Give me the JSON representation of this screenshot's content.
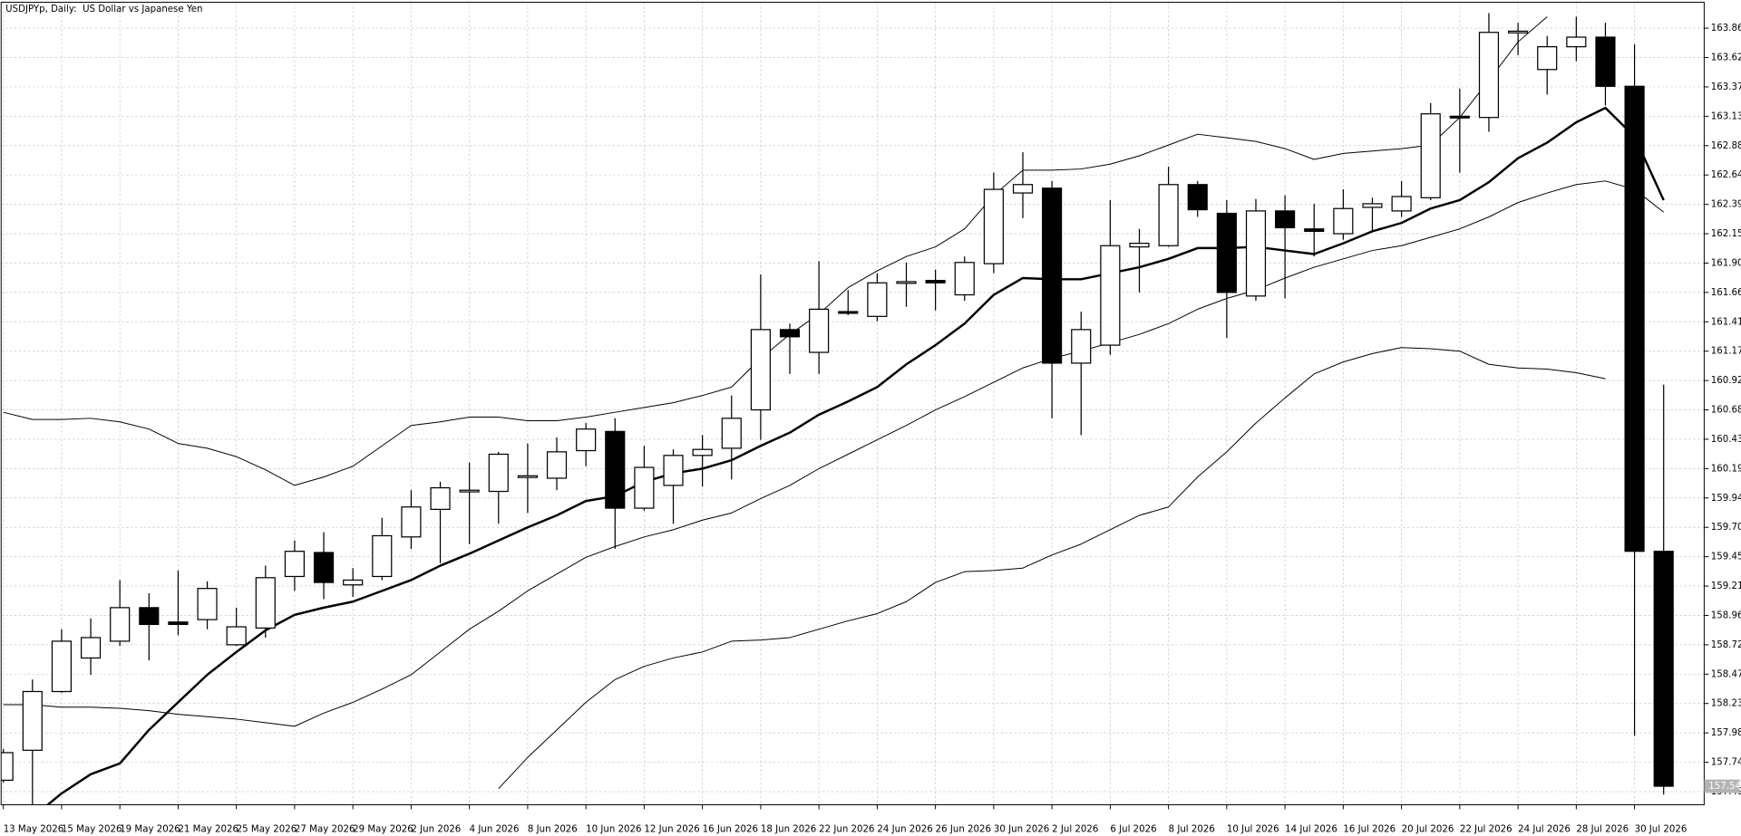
{
  "chart_data": {
    "type": "candlestick",
    "title": "USDJPYp, Daily:  US Dollar vs Japanese Yen",
    "categories": [
      "13 May 2026",
      null,
      "15 May 2026",
      null,
      "19 May 2026",
      null,
      "21 May 2026",
      null,
      "25 May 2026",
      null,
      "27 May 2026",
      null,
      "29 May 2026",
      null,
      "2 Jun 2026",
      null,
      "4 Jun 2026",
      null,
      "8 Jun 2026",
      null,
      "10 Jun 2026",
      null,
      "12 Jun 2026",
      null,
      "16 Jun 2026",
      null,
      "18 Jun 2026",
      null,
      "22 Jun 2026",
      null,
      "24 Jun 2026",
      null,
      "26 Jun 2026",
      null,
      "30 Jun 2026",
      null,
      "2 Jul 2026",
      null,
      "6 Jul 2026",
      null,
      "8 Jul 2026",
      null,
      "10 Jul 2026",
      null,
      "14 Jul 2026",
      null,
      "16 Jul 2026",
      null,
      "20 Jul 2026",
      null,
      "22 Jul 2026",
      null,
      "24 Jul 2026",
      null,
      "28 Jul 2026",
      null,
      "30 Jul 2026",
      null
    ],
    "open": [
      157.59,
      157.84,
      158.33,
      158.61,
      158.75,
      159.03,
      158.91,
      158.93,
      158.72,
      158.86,
      159.29,
      159.49,
      159.22,
      159.29,
      159.62,
      159.85,
      160.0,
      160.0,
      160.12,
      160.11,
      160.34,
      160.5,
      159.86,
      160.05,
      160.3,
      160.36,
      160.68,
      161.35,
      161.16,
      161.5,
      161.46,
      161.74,
      161.76,
      161.64,
      161.9,
      162.49,
      162.53,
      161.07,
      161.22,
      162.04,
      162.05,
      162.56,
      162.32,
      161.63,
      162.34,
      162.19,
      162.15,
      162.37,
      162.34,
      162.45,
      163.13,
      163.12,
      163.83,
      163.52,
      163.71,
      163.79,
      163.38,
      159.5
    ],
    "high": [
      157.85,
      158.43,
      158.85,
      158.94,
      159.26,
      159.15,
      159.34,
      159.25,
      159.03,
      159.38,
      159.59,
      159.66,
      159.36,
      159.78,
      160.01,
      160.08,
      160.24,
      160.33,
      160.4,
      160.45,
      160.57,
      160.61,
      160.38,
      160.35,
      160.47,
      160.8,
      161.81,
      161.4,
      161.92,
      161.68,
      161.82,
      161.91,
      161.85,
      161.96,
      162.66,
      162.83,
      162.59,
      161.5,
      162.43,
      162.19,
      162.71,
      162.59,
      162.43,
      162.44,
      162.47,
      162.4,
      162.52,
      162.45,
      162.59,
      163.24,
      163.36,
      163.99,
      163.91,
      163.8,
      163.96,
      163.91,
      163.73,
      160.89
    ],
    "low": [
      157.57,
      157.26,
      158.32,
      158.47,
      158.71,
      158.59,
      158.8,
      158.85,
      158.71,
      158.78,
      159.17,
      159.1,
      159.12,
      159.26,
      159.52,
      159.4,
      159.56,
      159.73,
      159.82,
      160.01,
      160.21,
      159.52,
      159.84,
      159.73,
      160.04,
      160.1,
      160.43,
      160.98,
      160.98,
      161.47,
      161.42,
      161.54,
      161.51,
      161.59,
      161.82,
      162.28,
      160.61,
      160.47,
      161.14,
      161.66,
      162.04,
      162.29,
      161.28,
      161.59,
      161.61,
      161.96,
      162.1,
      162.17,
      162.29,
      162.43,
      162.66,
      163.0,
      163.64,
      163.31,
      163.59,
      163.22,
      157.96,
      157.47
    ],
    "close": [
      157.82,
      158.33,
      158.75,
      158.78,
      159.03,
      158.89,
      158.89,
      159.19,
      158.87,
      159.28,
      159.5,
      159.24,
      159.26,
      159.63,
      159.87,
      160.03,
      160.01,
      160.31,
      160.13,
      160.33,
      160.52,
      159.86,
      160.2,
      160.3,
      160.35,
      160.61,
      161.35,
      161.29,
      161.52,
      161.49,
      161.74,
      161.75,
      161.74,
      161.91,
      162.52,
      162.56,
      161.07,
      161.35,
      162.05,
      162.07,
      162.56,
      162.35,
      161.66,
      162.34,
      162.2,
      162.17,
      162.36,
      162.4,
      162.46,
      163.15,
      163.12,
      163.83,
      163.84,
      163.71,
      163.79,
      163.38,
      159.5,
      157.54
    ],
    "lines": [
      {
        "color": "#000000",
        "width": 2,
        "values": [
          null,
          157.28,
          157.48,
          157.64,
          157.73,
          158.01,
          158.24,
          158.47,
          158.66,
          158.84,
          158.97,
          159.03,
          159.08,
          159.17,
          159.26,
          159.38,
          159.48,
          159.59,
          159.7,
          159.8,
          159.92,
          159.96,
          160.08,
          160.15,
          160.19,
          160.26,
          160.38,
          160.49,
          160.64,
          160.75,
          160.87,
          161.06,
          161.22,
          161.4,
          161.64,
          161.78,
          161.77,
          161.77,
          161.82,
          161.87,
          161.94,
          162.03,
          162.03,
          162.04,
          162.01,
          161.98,
          162.07,
          162.17,
          162.24,
          162.36,
          162.43,
          162.58,
          162.78,
          162.91,
          163.08,
          163.2,
          162.96,
          162.43
        ]
      },
      {
        "color": "#000000",
        "width": 0.8,
        "values": [
          160.66,
          160.6,
          160.6,
          160.61,
          160.58,
          160.52,
          160.4,
          160.36,
          160.29,
          160.18,
          160.05,
          160.12,
          160.21,
          160.38,
          160.55,
          160.58,
          160.62,
          160.62,
          160.59,
          160.59,
          160.62,
          160.66,
          160.7,
          160.74,
          160.8,
          160.87,
          161.11,
          161.31,
          161.48,
          161.7,
          161.84,
          161.96,
          162.04,
          162.19,
          162.47,
          162.68,
          162.68,
          162.69,
          162.73,
          162.8,
          162.89,
          162.98,
          162.95,
          162.92,
          162.86,
          162.77,
          162.82,
          162.84,
          162.86,
          162.89,
          163.12,
          163.43,
          163.75,
          163.96,
          null,
          null,
          null,
          null
        ]
      },
      {
        "color": "#000000",
        "width": 0.8,
        "values": [
          158.22,
          158.22,
          158.2,
          158.2,
          158.19,
          158.17,
          158.14,
          158.12,
          158.1,
          158.07,
          158.04,
          158.15,
          158.24,
          158.35,
          158.47,
          158.66,
          158.85,
          159.0,
          159.17,
          159.31,
          159.45,
          159.54,
          159.62,
          159.68,
          159.76,
          159.82,
          159.94,
          160.05,
          160.19,
          160.31,
          160.43,
          160.55,
          160.68,
          160.79,
          160.91,
          161.03,
          161.11,
          161.17,
          161.24,
          161.31,
          161.4,
          161.52,
          161.61,
          161.68,
          161.78,
          161.87,
          161.94,
          162.01,
          162.05,
          162.12,
          162.19,
          162.29,
          162.41,
          162.49,
          162.56,
          162.59,
          162.52,
          162.33
        ]
      },
      {
        "color": "#000000",
        "width": 0.8,
        "values": [
          null,
          null,
          null,
          null,
          null,
          null,
          null,
          null,
          null,
          null,
          null,
          null,
          null,
          null,
          null,
          null,
          null,
          157.52,
          157.78,
          158.01,
          158.24,
          158.43,
          158.54,
          158.61,
          158.66,
          158.75,
          158.76,
          158.78,
          158.85,
          158.92,
          158.98,
          159.08,
          159.24,
          159.33,
          159.34,
          159.36,
          159.47,
          159.56,
          159.68,
          159.8,
          159.87,
          160.12,
          160.33,
          160.57,
          160.78,
          160.98,
          161.08,
          161.15,
          161.2,
          161.19,
          161.17,
          161.06,
          161.03,
          161.02,
          160.99,
          160.94,
          null,
          null
        ]
      }
    ],
    "bull_color": "#ffffff",
    "bear_color": "#000000",
    "grid": true,
    "ylim": [
      157.385,
      164.1
    ],
    "yticks": [
      157.495,
      {
        "value": 157.74,
        "label": "157.740"
      },
      157.985,
      {
        "value": 158.23,
        "label": "158.230"
      },
      158.475,
      {
        "value": 158.72,
        "label": "158.720"
      },
      158.965,
      {
        "value": 159.21,
        "label": "159.210"
      },
      159.455,
      {
        "value": 159.7,
        "label": "159.700"
      },
      159.945,
      {
        "value": 160.19,
        "label": "160.190"
      },
      160.435,
      {
        "value": 160.68,
        "label": "160.680"
      },
      160.925,
      {
        "value": 161.17,
        "label": "161.170"
      },
      161.415,
      {
        "value": 161.66,
        "label": "161.660"
      },
      161.905,
      {
        "value": 162.15,
        "label": "162.150"
      },
      162.395,
      {
        "value": 162.64,
        "label": "162.640"
      },
      162.885,
      {
        "value": 163.13,
        "label": "163.130"
      },
      163.375,
      {
        "value": 163.62,
        "label": "163.620"
      },
      163.865
    ],
    "current_price": {
      "value": 157.54,
      "label": "157.540"
    }
  }
}
